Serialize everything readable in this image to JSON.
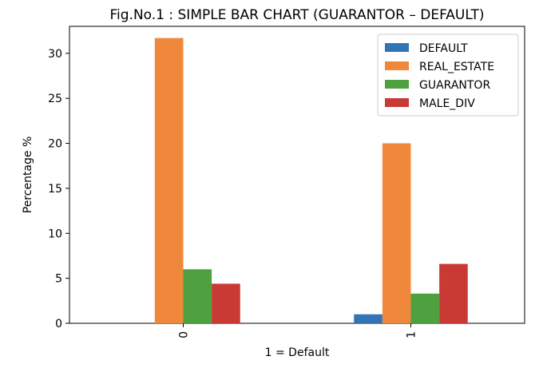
{
  "chart_data": {
    "type": "bar",
    "title": "Fig.No.1 : SIMPLE BAR CHART (GUARANTOR – DEFAULT)",
    "xlabel": "1 = Default",
    "ylabel": "Percentage %",
    "categories": [
      "0",
      "1"
    ],
    "ylim": [
      0,
      33
    ],
    "yticks": [
      0,
      5,
      10,
      15,
      20,
      25,
      30
    ],
    "grid": false,
    "legend_position": "top-right",
    "series": [
      {
        "name": "DEFAULT",
        "color": "#3274b5",
        "values": [
          0,
          1.0
        ]
      },
      {
        "name": "REAL_ESTATE",
        "color": "#f0883b",
        "values": [
          31.7,
          20.0
        ]
      },
      {
        "name": "GUARANTOR",
        "color": "#4fa03e",
        "values": [
          6.0,
          3.3
        ]
      },
      {
        "name": "MALE_DIV",
        "color": "#c93a35",
        "values": [
          4.4,
          6.6
        ]
      }
    ]
  }
}
